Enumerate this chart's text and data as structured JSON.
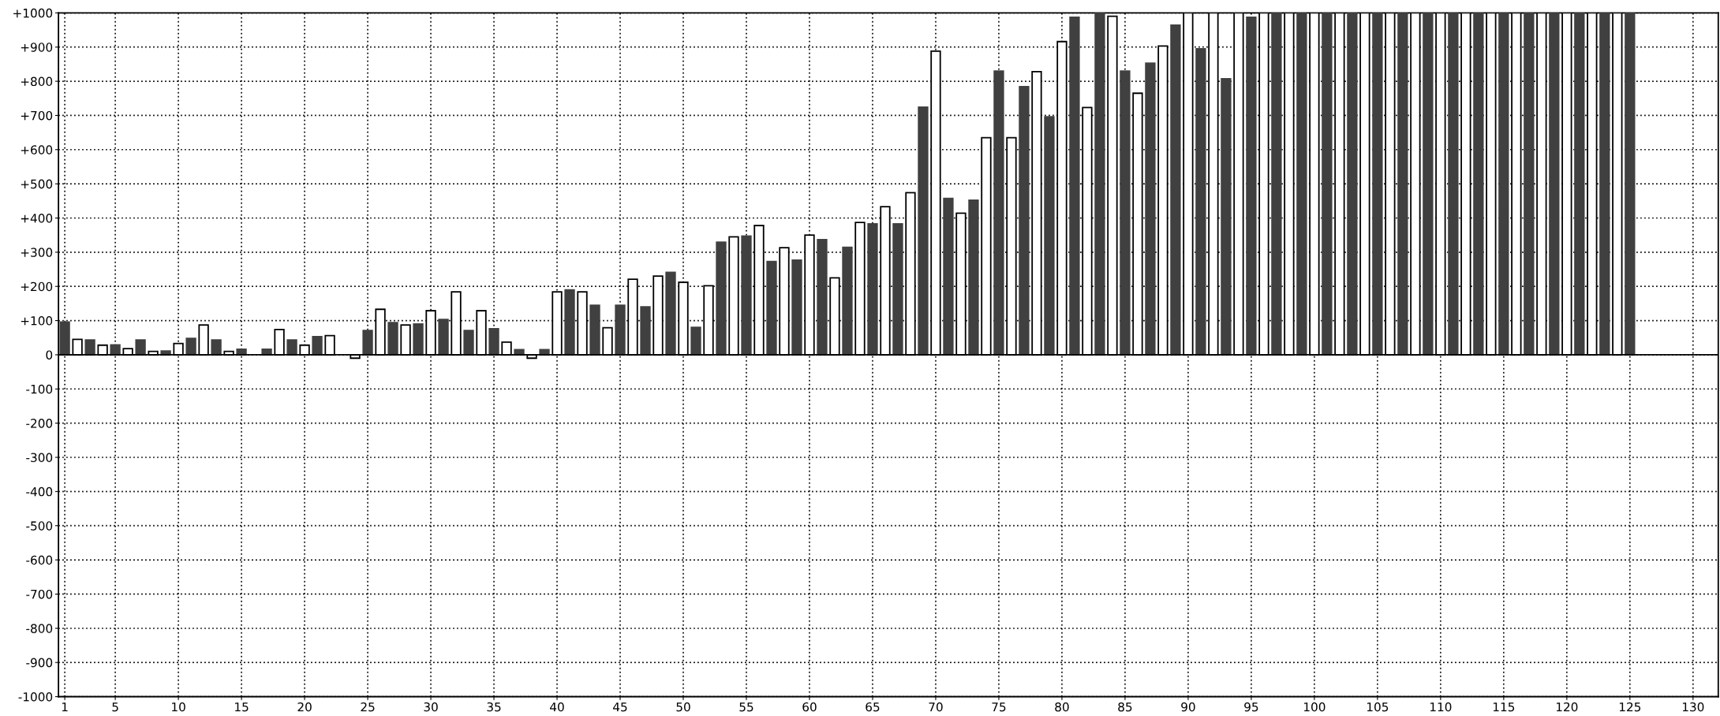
{
  "chart_data": {
    "type": "bar",
    "x": [
      1,
      2,
      3,
      4,
      5,
      6,
      7,
      8,
      9,
      10,
      11,
      12,
      13,
      14,
      15,
      16,
      17,
      18,
      19,
      20,
      21,
      22,
      23,
      24,
      25,
      26,
      27,
      28,
      29,
      30,
      31,
      32,
      33,
      34,
      35,
      36,
      37,
      38,
      39,
      40,
      41,
      42,
      43,
      44,
      45,
      46,
      47,
      48,
      49,
      50,
      51,
      52,
      53,
      54,
      55,
      56,
      57,
      58,
      59,
      60,
      61,
      62,
      63,
      64,
      65,
      66,
      67,
      68,
      69,
      70,
      71,
      72,
      73,
      74,
      75,
      76,
      77,
      78,
      79,
      80,
      81,
      82,
      83,
      84,
      85,
      86,
      87,
      88,
      89,
      90,
      91,
      92,
      93,
      94,
      95,
      96,
      97,
      98,
      99,
      100,
      101,
      102,
      103,
      104,
      105,
      106,
      107,
      108,
      109,
      110,
      111,
      112,
      113,
      114,
      115,
      116,
      117,
      118,
      119,
      120,
      121,
      122,
      123,
      124,
      125
    ],
    "values": [
      96,
      45,
      43,
      28,
      29,
      18,
      43,
      10,
      11,
      33,
      48,
      87,
      43,
      10,
      16,
      null,
      16,
      74,
      43,
      28,
      53,
      56,
      null,
      -10,
      71,
      133,
      94,
      87,
      90,
      129,
      103,
      184,
      71,
      129,
      76,
      37,
      15,
      -10,
      15,
      184,
      190,
      184,
      145,
      79,
      145,
      221,
      140,
      230,
      241,
      212,
      80,
      202,
      329,
      345,
      347,
      378,
      273,
      313,
      277,
      350,
      337,
      225,
      314,
      387,
      383,
      433,
      383,
      474,
      724,
      888,
      457,
      414,
      452,
      635,
      830,
      635,
      784,
      828,
      696,
      916,
      987,
      723,
      1000,
      990,
      830,
      765,
      853,
      903,
      964,
      1000,
      895,
      1000,
      807,
      1000,
      987,
      1000,
      1000,
      1000,
      1000,
      1000,
      1000,
      1000,
      1000,
      1000,
      1000,
      1000,
      1000,
      1000,
      1000,
      1000,
      1000,
      1000,
      1000,
      1000,
      1000,
      1000,
      1000,
      1000,
      1000,
      1000,
      1000,
      1000,
      1000,
      1000,
      1000
    ],
    "colors": [
      "#404040",
      "#ffffff",
      "#404040",
      "#ffffff",
      "#404040",
      "#ffffff",
      "#404040",
      "#ffffff",
      "#404040",
      "#ffffff",
      "#404040",
      "#ffffff",
      "#404040",
      "#ffffff",
      "#404040",
      "#ffffff",
      "#404040",
      "#ffffff",
      "#404040",
      "#ffffff",
      "#404040",
      "#ffffff",
      "#404040",
      "#ffffff",
      "#404040",
      "#ffffff",
      "#404040",
      "#ffffff",
      "#404040",
      "#ffffff",
      "#404040",
      "#ffffff",
      "#404040",
      "#ffffff",
      "#404040",
      "#ffffff",
      "#404040",
      "#ffffff",
      "#404040",
      "#ffffff",
      "#404040",
      "#ffffff",
      "#404040",
      "#ffffff",
      "#404040",
      "#ffffff",
      "#404040",
      "#ffffff",
      "#404040",
      "#ffffff",
      "#404040",
      "#ffffff",
      "#404040",
      "#ffffff",
      "#404040",
      "#ffffff",
      "#404040",
      "#ffffff",
      "#404040",
      "#ffffff",
      "#404040",
      "#ffffff",
      "#404040",
      "#ffffff",
      "#404040",
      "#ffffff",
      "#404040",
      "#ffffff",
      "#404040",
      "#ffffff",
      "#404040",
      "#ffffff",
      "#404040",
      "#ffffff",
      "#404040",
      "#ffffff",
      "#404040",
      "#ffffff",
      "#404040",
      "#ffffff",
      "#404040",
      "#ffffff",
      "#404040",
      "#ffffff",
      "#404040",
      "#ffffff",
      "#404040",
      "#ffffff",
      "#404040",
      "#ffffff",
      "#404040",
      "#ffffff",
      "#404040",
      "#ffffff",
      "#404040",
      "#ffffff",
      "#404040",
      "#ffffff",
      "#404040",
      "#ffffff",
      "#404040",
      "#ffffff",
      "#404040",
      "#ffffff",
      "#404040",
      "#ffffff",
      "#404040",
      "#ffffff",
      "#404040",
      "#ffffff",
      "#404040",
      "#ffffff",
      "#404040",
      "#ffffff",
      "#404040",
      "#ffffff",
      "#404040",
      "#ffffff",
      "#404040",
      "#ffffff",
      "#404040",
      "#ffffff",
      "#404040",
      "#ffffff",
      "#404040"
    ],
    "xlim": [
      0.5,
      132
    ],
    "xticks": [
      1,
      5,
      10,
      15,
      20,
      25,
      30,
      35,
      40,
      45,
      50,
      55,
      60,
      65,
      70,
      75,
      80,
      85,
      90,
      95,
      100,
      105,
      110,
      115,
      120,
      125,
      130
    ],
    "ylim": [
      -1000,
      1000
    ],
    "yticks": [
      {
        "value": -1000,
        "label": "-1000"
      },
      {
        "value": -900,
        "label": "-900"
      },
      {
        "value": -800,
        "label": "-800"
      },
      {
        "value": -700,
        "label": "-700"
      },
      {
        "value": -600,
        "label": "-600"
      },
      {
        "value": -500,
        "label": "-500"
      },
      {
        "value": -400,
        "label": "-400"
      },
      {
        "value": -300,
        "label": "-300"
      },
      {
        "value": -200,
        "label": "-200"
      },
      {
        "value": -100,
        "label": "-100"
      },
      0,
      {
        "value": 100,
        "label": "+100"
      },
      {
        "value": 200,
        "label": "+200"
      },
      {
        "value": 300,
        "label": "+300"
      },
      {
        "value": 400,
        "label": "+400"
      },
      {
        "value": 500,
        "label": "+500"
      },
      {
        "value": 600,
        "label": "+600"
      },
      {
        "value": 700,
        "label": "+700"
      },
      {
        "value": 800,
        "label": "+800"
      },
      {
        "value": 900,
        "label": "+900"
      },
      {
        "value": 1000,
        "label": "+1000"
      }
    ],
    "grid": true,
    "legend": false
  }
}
